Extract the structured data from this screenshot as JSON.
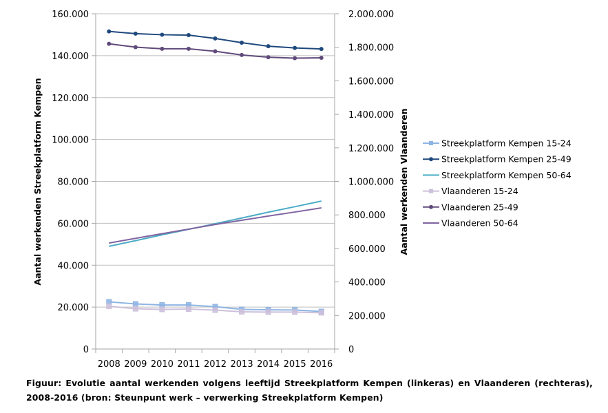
{
  "chart_data": {
    "type": "line",
    "title": "",
    "categories": [
      "2008",
      "2009",
      "2010",
      "2011",
      "2012",
      "2013",
      "2014",
      "2015",
      "2016"
    ],
    "xlabel": "",
    "ylabel": "Aantal werkenden Streekplatform Kempen",
    "y2label": "Aantal werkenden Vlaanderen",
    "ylim": [
      0,
      160000
    ],
    "y2lim": [
      0,
      2000000
    ],
    "yticks": [
      "0",
      "20.000",
      "40.000",
      "60.000",
      "80.000",
      "100.000",
      "120.000",
      "140.000",
      "160.000"
    ],
    "ytick_values": [
      0,
      20000,
      40000,
      60000,
      80000,
      100000,
      120000,
      140000,
      160000
    ],
    "y2ticks": [
      "0",
      "200.000",
      "400.000",
      "600.000",
      "800.000",
      "1.000.000",
      "1.200.000",
      "1.400.000",
      "1.600.000",
      "1.800.000",
      "2.000.000"
    ],
    "y2tick_values": [
      0,
      200000,
      400000,
      600000,
      800000,
      1000000,
      1200000,
      1400000,
      1600000,
      1800000,
      2000000
    ],
    "grid": true,
    "legend_position": "right",
    "series": [
      {
        "name": "Streekplatform Kempen 15-24",
        "axis": "left",
        "color": "#8eb4e3",
        "marker": "square",
        "values": [
          22500,
          21500,
          21000,
          21000,
          20200,
          18900,
          18700,
          18600,
          17900
        ]
      },
      {
        "name": "Streekplatform Kempen 25-49",
        "axis": "left",
        "color": "#1f497d",
        "marker": "circle",
        "values": [
          151600,
          150500,
          150000,
          149800,
          148200,
          146200,
          144500,
          143700,
          143200
        ]
      },
      {
        "name": "Streekplatform Kempen 50-64",
        "axis": "left",
        "color": "#4bacc6",
        "marker": "none",
        "values": [
          49000,
          51700,
          54500,
          57100,
          59800,
          62500,
          65300,
          67900,
          70600
        ]
      },
      {
        "name": "Vlaanderen 15-24",
        "axis": "right",
        "color": "#ccc0da",
        "marker": "square",
        "values": [
          255000,
          240000,
          236000,
          238000,
          232000,
          222000,
          220000,
          220000,
          216000
        ]
      },
      {
        "name": "Vlaanderen 25-49",
        "axis": "right",
        "color": "#604a7b",
        "marker": "circle",
        "values": [
          1821000,
          1801000,
          1791000,
          1791000,
          1776000,
          1754000,
          1741000,
          1735000,
          1737000
        ]
      },
      {
        "name": "Vlaanderen 50-64",
        "axis": "right",
        "color": "#8064a2",
        "marker": "none",
        "values": [
          632000,
          660000,
          688000,
          715000,
          743000,
          768000,
          793000,
          817000,
          842000
        ]
      }
    ]
  },
  "caption": "Figuur: Evolutie aantal werkenden volgens leeftijd Streekplatform Kempen (linkeras) en Vlaanderen (rechteras), 2008-2016 (bron: Steunpunt werk – verwerking Streekplatform Kempen)",
  "colors": {
    "gridline": "#bfbfbf",
    "axis": "#a6a6a6"
  }
}
